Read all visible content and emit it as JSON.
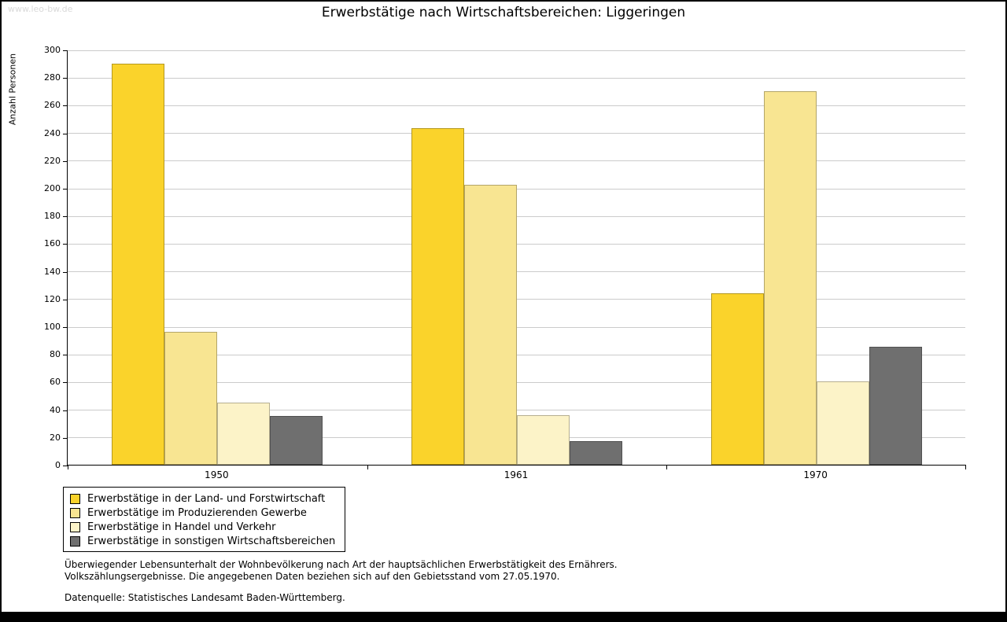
{
  "watermark": "www.leo-bw.de",
  "chart_data": {
    "type": "bar",
    "title": "Erwerbstätige nach Wirtschaftsbereichen: Liggeringen",
    "ylabel": "Anzahl Personen",
    "ylim": [
      0,
      300
    ],
    "ytick_step": 20,
    "grid": true,
    "legend_position": "bottom-left",
    "categories": [
      "1950",
      "1961",
      "1970"
    ],
    "series": [
      {
        "name": "Erwerbstätige in der Land- und Forstwirtschaft",
        "color": "#FAD32B",
        "values": [
          290,
          243,
          124
        ]
      },
      {
        "name": "Erwerbstätige im Produzierenden Gewerbe",
        "color": "#F8E592",
        "values": [
          96,
          202,
          270
        ]
      },
      {
        "name": "Erwerbstätige in Handel und Verkehr",
        "color": "#FCF3C8",
        "values": [
          45,
          36,
          60
        ]
      },
      {
        "name": "Erwerbstätige in sonstigen Wirtschaftsbereichen",
        "color": "#6F6F6F",
        "values": [
          35,
          17,
          85
        ]
      }
    ]
  },
  "footnotes": {
    "line1": "Überwiegender Lebensunterhalt der Wohnbevölkerung nach Art der hauptsächlichen Erwerbstätigkeit des Ernährers.",
    "line2": "Volkszählungsergebnisse. Die angegebenen Daten beziehen sich auf den Gebietsstand vom 27.05.1970.",
    "source": "Datenquelle: Statistisches Landesamt Baden-Württemberg."
  }
}
